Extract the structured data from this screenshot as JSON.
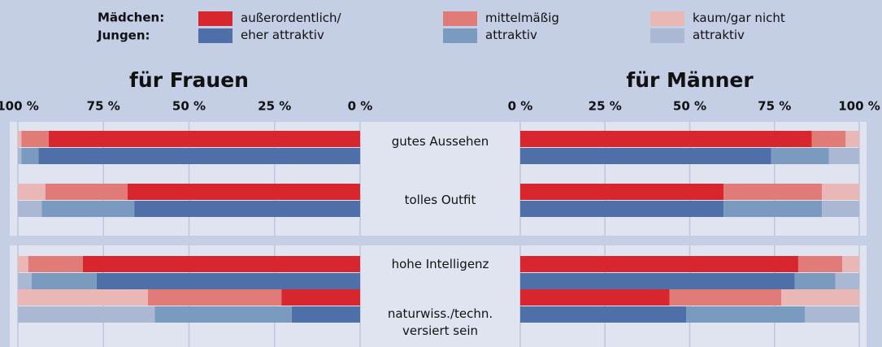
{
  "chart_data": {
    "type": "bar",
    "orientation": "horizontal",
    "stacked": true,
    "grid": true,
    "categories": [
      "gutes Aussehen",
      "tolles Outfit",
      "hohe Intelligenz",
      "naturwiss./techn. versiert sein"
    ],
    "legend": {
      "groups": [
        "Mädchen:",
        "Jungen:"
      ],
      "entries": [
        "außerordentlich/ eher attraktiv",
        "mittelmäßig attraktiv",
        "kaum/gar nicht attraktiv"
      ]
    },
    "panels": [
      {
        "title": "für Frauen",
        "direction": "left",
        "xlim": [
          0,
          100
        ],
        "xticks": [
          {
            "value": 100,
            "label": "100 %"
          },
          {
            "value": 75,
            "label": "75 %"
          },
          {
            "value": 50,
            "label": "50 %"
          },
          {
            "value": 25,
            "label": "25 %"
          },
          {
            "value": 0,
            "label": "0 %"
          }
        ],
        "series": [
          [
            {
              "color": "#d7262e",
              "values": [
                91,
                68,
                81,
                23
              ]
            },
            {
              "color": "#e07b78",
              "values": [
                8,
                24,
                16,
                39
              ]
            },
            {
              "color": "#e9b8b6",
              "values": [
                1,
                8,
                3,
                38
              ]
            }
          ],
          [
            {
              "color": "#4f6fa8",
              "values": [
                94,
                66,
                77,
                20
              ]
            },
            {
              "color": "#7a9bbf",
              "values": [
                5,
                27,
                19,
                40
              ]
            },
            {
              "color": "#aab8d4",
              "values": [
                1,
                7,
                4,
                40
              ]
            }
          ]
        ]
      },
      {
        "title": "für Männer",
        "direction": "right",
        "xlim": [
          0,
          100
        ],
        "xticks": [
          {
            "value": 0,
            "label": "0 %"
          },
          {
            "value": 25,
            "label": "25 %"
          },
          {
            "value": 50,
            "label": "50 %"
          },
          {
            "value": 75,
            "label": "75 %"
          },
          {
            "value": 100,
            "label": "100 %"
          }
        ],
        "series": [
          [
            {
              "color": "#d7262e",
              "values": [
                86,
                60,
                82,
                44
              ]
            },
            {
              "color": "#e07b78",
              "values": [
                10,
                29,
                13,
                33
              ]
            },
            {
              "color": "#e9b8b6",
              "values": [
                4,
                11,
                5,
                23
              ]
            }
          ],
          [
            {
              "color": "#4f6fa8",
              "values": [
                74,
                60,
                81,
                49
              ]
            },
            {
              "color": "#7a9bbf",
              "values": [
                17,
                29,
                12,
                35
              ]
            },
            {
              "color": "#aab8d4",
              "values": [
                9,
                11,
                7,
                16
              ]
            }
          ]
        ]
      }
    ]
  }
}
